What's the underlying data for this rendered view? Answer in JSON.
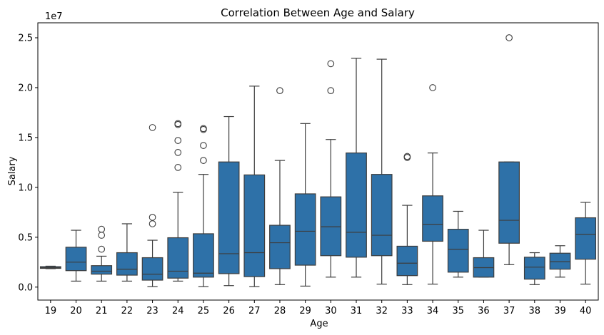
{
  "chart_data": {
    "type": "box",
    "title": "Correlation Between Age and Salary",
    "xlabel": "Age",
    "ylabel": "Salary",
    "y_offset_text": "1e7",
    "ylim": [
      -1300000,
      26500000
    ],
    "y_ticks": [
      0,
      5000000,
      10000000,
      15000000,
      20000000,
      25000000
    ],
    "y_tick_labels": [
      "0.0",
      "0.5",
      "1.0",
      "1.5",
      "2.0",
      "2.5"
    ],
    "box_color": "#2e71a8",
    "edge_color": "#3d3d3d",
    "grid": false,
    "categories": [
      "19",
      "20",
      "21",
      "22",
      "23",
      "24",
      "25",
      "26",
      "27",
      "28",
      "29",
      "30",
      "31",
      "32",
      "33",
      "34",
      "35",
      "36",
      "37",
      "38",
      "39",
      "40"
    ],
    "boxes": [
      {
        "age": "19",
        "whislo": 1850000,
        "q1": 1880000,
        "med": 1950000,
        "q3": 2050000,
        "whishi": 2100000,
        "fliers": []
      },
      {
        "age": "20",
        "whislo": 600000,
        "q1": 1650000,
        "med": 2500000,
        "q3": 4000000,
        "whishi": 5700000,
        "fliers": []
      },
      {
        "age": "21",
        "whislo": 600000,
        "q1": 1300000,
        "med": 1600000,
        "q3": 2150000,
        "whishi": 3100000,
        "fliers": [
          3800000,
          5200000,
          5800000
        ]
      },
      {
        "age": "22",
        "whislo": 600000,
        "q1": 1200000,
        "med": 1800000,
        "q3": 3450000,
        "whishi": 6350000,
        "fliers": []
      },
      {
        "age": "23",
        "whislo": 50000,
        "q1": 700000,
        "med": 1300000,
        "q3": 2950000,
        "whishi": 4700000,
        "fliers": [
          6350000,
          7000000,
          16000000
        ]
      },
      {
        "age": "24",
        "whislo": 600000,
        "q1": 900000,
        "med": 1600000,
        "q3": 4950000,
        "whishi": 9500000,
        "fliers": [
          12000000,
          13500000,
          14700000,
          16300000,
          16400000
        ]
      },
      {
        "age": "25",
        "whislo": 50000,
        "q1": 1000000,
        "med": 1400000,
        "q3": 5350000,
        "whishi": 11300000,
        "fliers": [
          12700000,
          14200000,
          15800000,
          15900000
        ]
      },
      {
        "age": "26",
        "whislo": 150000,
        "q1": 1350000,
        "med": 3350000,
        "q3": 12550000,
        "whishi": 17100000,
        "fliers": []
      },
      {
        "age": "27",
        "whislo": 50000,
        "q1": 1050000,
        "med": 3450000,
        "q3": 11250000,
        "whishi": 20150000,
        "fliers": []
      },
      {
        "age": "28",
        "whislo": 250000,
        "q1": 1850000,
        "med": 4450000,
        "q3": 6200000,
        "whishi": 12700000,
        "fliers": [
          19700000
        ]
      },
      {
        "age": "29",
        "whislo": 100000,
        "q1": 2200000,
        "med": 5600000,
        "q3": 9350000,
        "whishi": 16400000,
        "fliers": []
      },
      {
        "age": "30",
        "whislo": 1000000,
        "q1": 3150000,
        "med": 6050000,
        "q3": 9050000,
        "whishi": 14800000,
        "fliers": [
          19700000,
          22400000
        ]
      },
      {
        "age": "31",
        "whislo": 1000000,
        "q1": 3000000,
        "med": 5500000,
        "q3": 13450000,
        "whishi": 22950000,
        "fliers": []
      },
      {
        "age": "32",
        "whislo": 300000,
        "q1": 3150000,
        "med": 5200000,
        "q3": 11300000,
        "whishi": 22850000,
        "fliers": []
      },
      {
        "age": "33",
        "whislo": 250000,
        "q1": 1150000,
        "med": 2400000,
        "q3": 4100000,
        "whishi": 8200000,
        "fliers": [
          13000000,
          13100000
        ]
      },
      {
        "age": "34",
        "whislo": 300000,
        "q1": 4600000,
        "med": 6300000,
        "q3": 9150000,
        "whishi": 13450000,
        "fliers": [
          20000000
        ]
      },
      {
        "age": "35",
        "whislo": 1000000,
        "q1": 1500000,
        "med": 3800000,
        "q3": 5800000,
        "whishi": 7600000,
        "fliers": []
      },
      {
        "age": "36",
        "whislo": 1000000,
        "q1": 1000000,
        "med": 1950000,
        "q3": 2950000,
        "whishi": 5700000,
        "fliers": []
      },
      {
        "age": "37",
        "whislo": 2250000,
        "q1": 4400000,
        "med": 6700000,
        "q3": 12550000,
        "whishi": 12550000,
        "fliers": [
          25000000
        ]
      },
      {
        "age": "38",
        "whislo": 250000,
        "q1": 800000,
        "med": 2000000,
        "q3": 3000000,
        "whishi": 3450000,
        "fliers": []
      },
      {
        "age": "39",
        "whislo": 1000000,
        "q1": 1800000,
        "med": 2550000,
        "q3": 3400000,
        "whishi": 4150000,
        "fliers": []
      },
      {
        "age": "40",
        "whislo": 300000,
        "q1": 2800000,
        "med": 5300000,
        "q3": 6950000,
        "whishi": 8500000,
        "fliers": []
      }
    ]
  }
}
